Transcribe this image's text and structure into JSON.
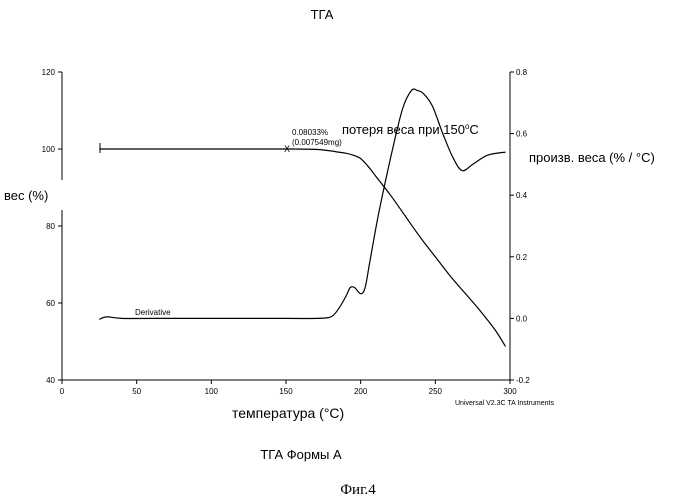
{
  "chart_data": {
    "type": "line",
    "title": "ТГА",
    "xlabel": "температура (°C)",
    "ylabel_left": "вес (%)",
    "ylabel_right": "произв. веса (% / °C)",
    "x_ticks": [
      "0",
      "50",
      "100",
      "150",
      "200",
      "250",
      "300"
    ],
    "y_left_ticks": [
      "40",
      "60",
      "80",
      "100",
      "120"
    ],
    "y_right_ticks": [
      "-0.2",
      "0.0",
      "0.2",
      "0.4",
      "0.6",
      "0.8"
    ],
    "xlim": [
      0,
      300
    ],
    "ylim_left": [
      40,
      120
    ],
    "ylim_right": [
      -0.2,
      0.8
    ],
    "grid": false,
    "series": [
      {
        "name": "вес",
        "axis": "left",
        "color": "#000000",
        "x": [
          25,
          50,
          100,
          150,
          170,
          180,
          185,
          190,
          195,
          200,
          205,
          210,
          220,
          230,
          240,
          250,
          260,
          270,
          280,
          290,
          297
        ],
        "y": [
          100,
          100,
          100,
          100,
          99.9,
          99.5,
          99.2,
          98.9,
          98.4,
          97.5,
          95.5,
          93,
          88,
          82.5,
          77,
          72,
          67,
          62.5,
          58,
          53,
          48.7
        ]
      },
      {
        "name": "Derivative",
        "axis": "right",
        "color": "#000000",
        "x": [
          25,
          30,
          40,
          60,
          100,
          150,
          170,
          180,
          185,
          190,
          193,
          196,
          200,
          203,
          206,
          212,
          220,
          228,
          234,
          238,
          242,
          248,
          255,
          262,
          268,
          275,
          285,
          297
        ],
        "y": [
          -0.003,
          0.005,
          0.0,
          0.0,
          0.0,
          0.0,
          0.0,
          0.005,
          0.03,
          0.07,
          0.1,
          0.1,
          0.08,
          0.1,
          0.18,
          0.34,
          0.52,
          0.68,
          0.74,
          0.74,
          0.73,
          0.69,
          0.6,
          0.52,
          0.48,
          0.5,
          0.53,
          0.54
        ]
      }
    ],
    "annotations": {
      "label1": "0.08033%",
      "label2": "(0.007549mg)",
      "marker": "X",
      "weight_loss": "потеря веса при 150",
      "weight_loss_unit": "C",
      "series_label": "Derivative",
      "instrument": "Universal V2.3C TA Instruments"
    },
    "subtitle": "ТГА Формы А",
    "figure_label": "Фиг.4"
  }
}
